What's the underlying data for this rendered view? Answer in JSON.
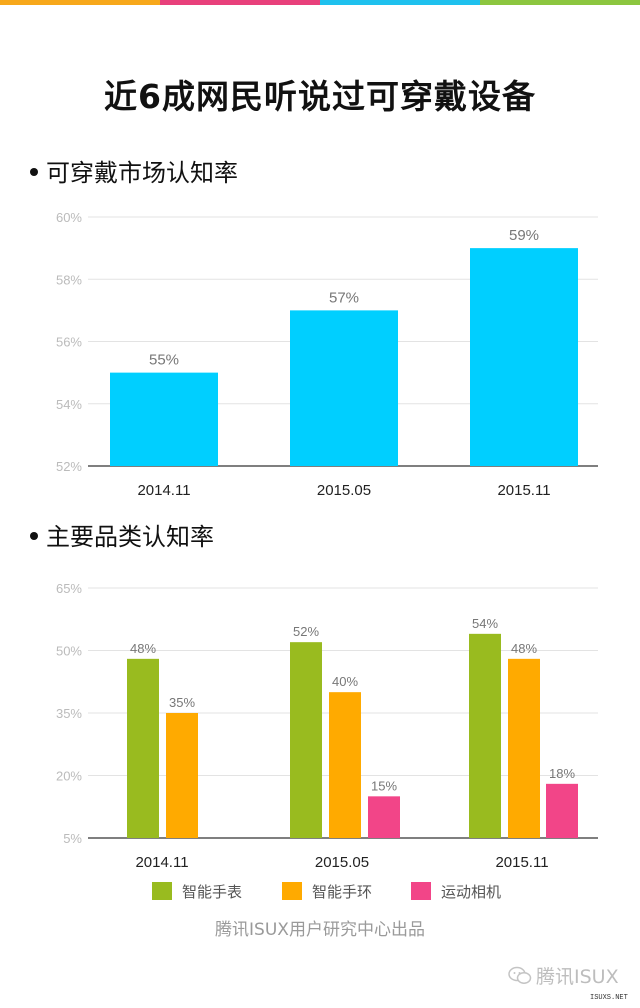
{
  "header": {
    "stripe_colors": [
      "#f7a81b",
      "#e8407b",
      "#1fc1ee",
      "#8cc63f"
    ],
    "title": "近6成网民听说过可穿戴设备"
  },
  "sections": {
    "market": {
      "title": "可穿戴市场认知率"
    },
    "category": {
      "title": "主要品类认知率"
    }
  },
  "chart_data": [
    {
      "type": "bar",
      "title": "可穿戴市场认知率",
      "categories": [
        "2014.11",
        "2015.05",
        "2015.11"
      ],
      "values": [
        55,
        57,
        59
      ],
      "value_labels": [
        "55%",
        "57%",
        "59%"
      ],
      "ylim": [
        52,
        60
      ],
      "yticks": [
        52,
        54,
        56,
        58,
        60
      ],
      "ytick_labels": [
        "52%",
        "54%",
        "56%",
        "58%",
        "60%"
      ],
      "colors": [
        "#00cfff"
      ],
      "grid": true
    },
    {
      "type": "bar",
      "title": "主要品类认知率",
      "categories": [
        "2014.11",
        "2015.05",
        "2015.11"
      ],
      "series": [
        {
          "name": "智能手表",
          "values": [
            48,
            52,
            54
          ],
          "labels": [
            "48%",
            "52%",
            "54%"
          ],
          "color": "#99bb1f"
        },
        {
          "name": "智能手环",
          "values": [
            35,
            40,
            48
          ],
          "labels": [
            "35%",
            "40%",
            "48%"
          ],
          "color": "#ffaa00"
        },
        {
          "name": "运动相机",
          "values": [
            null,
            15,
            18
          ],
          "labels": [
            "",
            "15%",
            "18%"
          ],
          "color": "#f24588"
        }
      ],
      "ylim": [
        5,
        65
      ],
      "yticks": [
        5,
        20,
        35,
        50,
        65
      ],
      "ytick_labels": [
        "5%",
        "20%",
        "35%",
        "50%",
        "65%"
      ],
      "legend_position": "bottom",
      "grid": true
    }
  ],
  "legend": [
    {
      "label": "智能手表",
      "color": "#99bb1f"
    },
    {
      "label": "智能手环",
      "color": "#ffaa00"
    },
    {
      "label": "运动相机",
      "color": "#f24588"
    }
  ],
  "footer": {
    "credit": "腾讯ISUX用户研究中心出品"
  },
  "watermark": {
    "text": "腾讯ISUX",
    "small": "ISUXS.NET"
  }
}
